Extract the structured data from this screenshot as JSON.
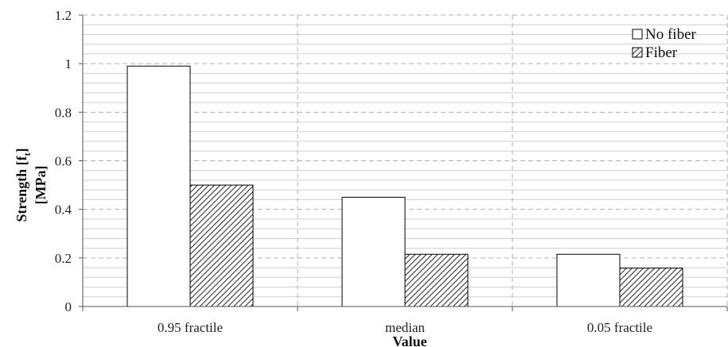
{
  "chart_data": {
    "type": "bar",
    "categories": [
      "0.95 fractile",
      "median",
      "0.05 fractile"
    ],
    "series": [
      {
        "name": "No fiber",
        "values": [
          0.99,
          0.45,
          0.215
        ],
        "fill": "#ffffff"
      },
      {
        "name": "Fiber",
        "values": [
          0.5,
          0.215,
          0.158
        ],
        "fill": "hatch"
      }
    ],
    "xlabel": "Value",
    "ylabel_line1": "Strength [f",
    "ylabel_sub": "t",
    "ylabel_line1_end": "]",
    "ylabel_line2": "[MPa]",
    "ylim": [
      0,
      1.2
    ],
    "yticks": [
      "0",
      "0.2",
      "0.4",
      "0.6",
      "0.8",
      "1",
      "1.2"
    ],
    "ytick_values": [
      0,
      0.2,
      0.4,
      0.6,
      0.8,
      1.0,
      1.2
    ],
    "major_grid": "dashed",
    "minor_grid": true,
    "minor_step": 0.04,
    "legend_position": "top-right",
    "colors": {
      "bar_stroke": "#000000",
      "grid": "#b0b0b0",
      "hatch_line": "#333333",
      "hatch_bg": "#ffffff"
    }
  }
}
